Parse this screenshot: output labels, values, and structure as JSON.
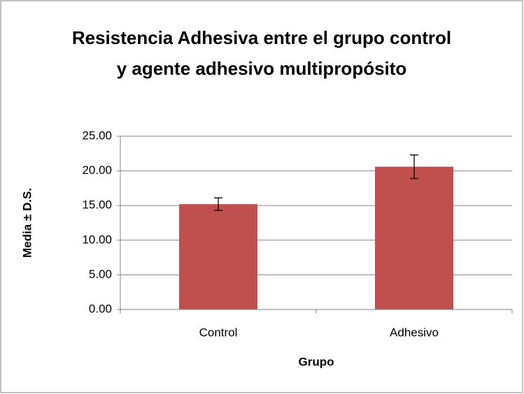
{
  "chart_data": {
    "type": "bar",
    "title": "Resistencia Adhesiva entre el grupo control y agente adhesivo multipropósito",
    "x_label": "Grupo",
    "y_label": "Media ± D.S.",
    "categories": [
      "Control",
      "Adhesivo"
    ],
    "values": [
      15.2,
      20.6
    ],
    "errors": [
      0.9,
      1.7
    ],
    "color": "#c0504d",
    "ylim": [
      0,
      25
    ],
    "yticks": [
      {
        "value": 0,
        "label": "0.00"
      },
      {
        "value": 5,
        "label": "5.00"
      },
      {
        "value": 10,
        "label": "10.00"
      },
      {
        "value": 15,
        "label": "15.00"
      },
      {
        "value": 20,
        "label": "20.00"
      },
      {
        "value": 25,
        "label": "25.00"
      }
    ],
    "grid": true
  }
}
